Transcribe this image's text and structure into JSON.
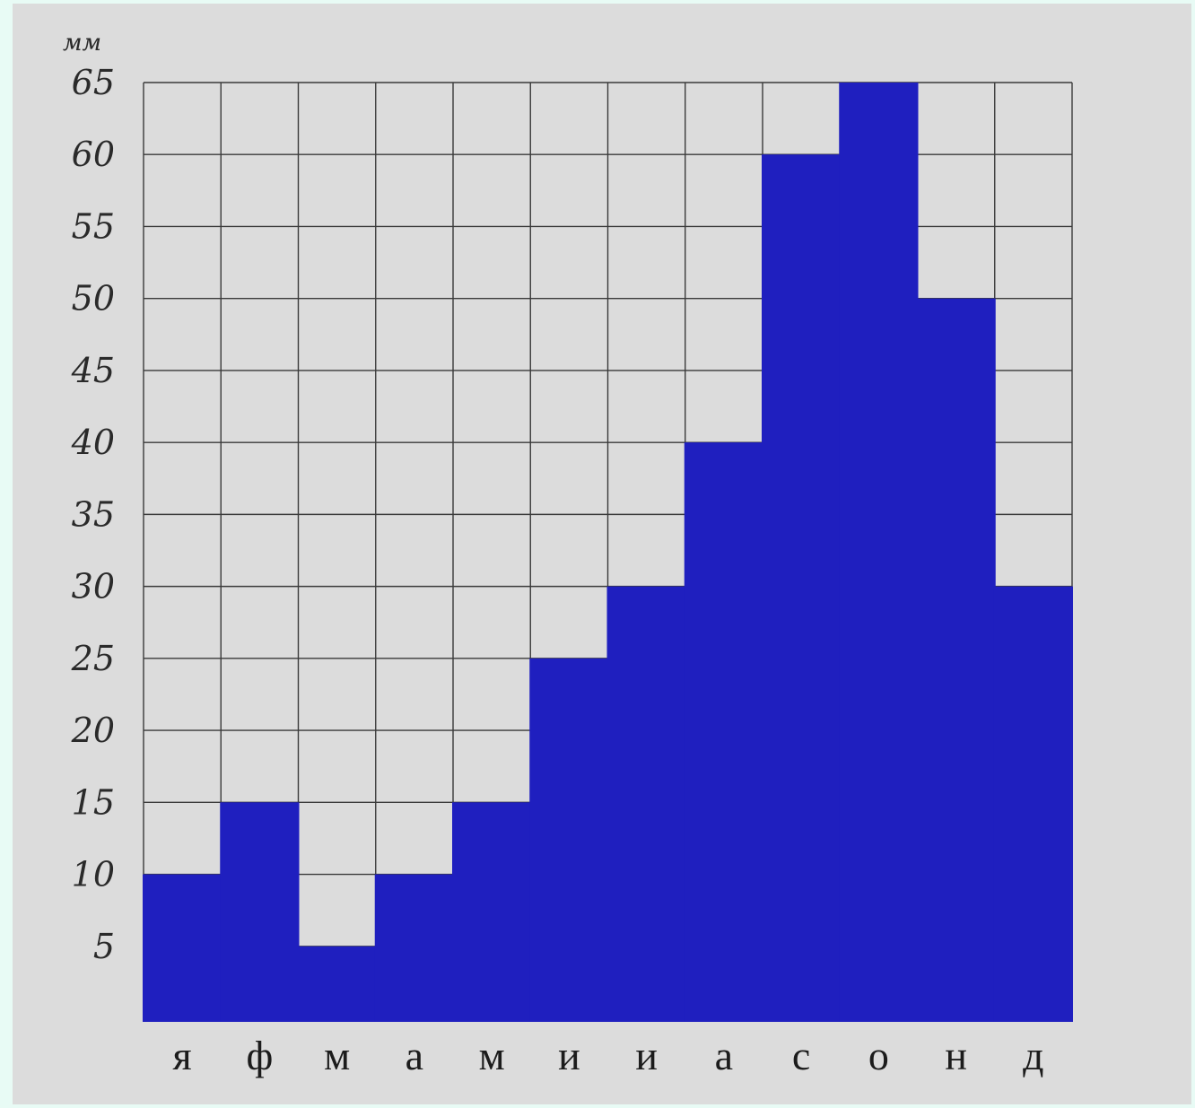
{
  "chart_data": {
    "type": "bar",
    "title": "",
    "xlabel": "",
    "ylabel": "мм",
    "categories": [
      "я",
      "ф",
      "м",
      "а",
      "м",
      "и",
      "и",
      "а",
      "с",
      "о",
      "н",
      "д"
    ],
    "values": [
      10,
      15,
      5,
      10,
      15,
      25,
      30,
      40,
      60,
      65,
      50,
      30
    ],
    "ylim": [
      0,
      65
    ],
    "yticks": [
      "5",
      "10",
      "15",
      "20",
      "25",
      "30",
      "35",
      "40",
      "45",
      "50",
      "55",
      "60",
      "65"
    ],
    "grid": true,
    "bar_color": "#1f1fbf",
    "grid_color": "#3a3a3a"
  }
}
